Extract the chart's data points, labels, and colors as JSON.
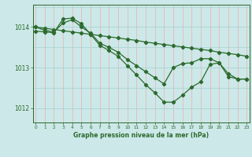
{
  "x": [
    0,
    1,
    2,
    3,
    4,
    5,
    6,
    7,
    8,
    9,
    10,
    11,
    12,
    13,
    14,
    15,
    16,
    17,
    18,
    19,
    20,
    21,
    22,
    23
  ],
  "line1": [
    1014.0,
    1013.97,
    1013.94,
    1013.91,
    1013.88,
    1013.85,
    1013.82,
    1013.79,
    1013.76,
    1013.73,
    1013.7,
    1013.67,
    1013.63,
    1013.6,
    1013.57,
    1013.54,
    1013.51,
    1013.48,
    1013.45,
    1013.42,
    1013.38,
    1013.35,
    1013.32,
    1013.28
  ],
  "line2": [
    1013.9,
    1013.88,
    1013.86,
    1014.2,
    1014.22,
    1014.08,
    1013.82,
    1013.55,
    1013.42,
    1013.28,
    1013.05,
    1012.82,
    1012.58,
    1012.38,
    1012.15,
    1012.15,
    1012.32,
    1012.52,
    1012.65,
    1013.08,
    1013.12,
    1012.78,
    1012.72,
    1012.72
  ],
  "line3": [
    1014.0,
    1013.92,
    1013.88,
    1014.1,
    1014.18,
    1014.0,
    1013.85,
    1013.6,
    1013.5,
    1013.38,
    1013.2,
    1013.05,
    1012.9,
    1012.75,
    1012.6,
    1013.0,
    1013.1,
    1013.12,
    1013.22,
    1013.22,
    1013.12,
    1012.85,
    1012.72,
    1012.72
  ],
  "line_color": "#2d6a2d",
  "bg_color": "#cce8e8",
  "grid_color_v": "#e8b8b8",
  "grid_color_h": "#aad4d4",
  "title": "Graphe pression niveau de la mer (hPa)",
  "yticks": [
    1012,
    1013,
    1014
  ],
  "xticks": [
    0,
    1,
    2,
    3,
    4,
    5,
    6,
    7,
    8,
    9,
    10,
    11,
    12,
    13,
    14,
    15,
    16,
    17,
    18,
    19,
    20,
    21,
    22,
    23
  ],
  "ylim": [
    1011.65,
    1014.55
  ],
  "xlim": [
    -0.3,
    23.3
  ]
}
